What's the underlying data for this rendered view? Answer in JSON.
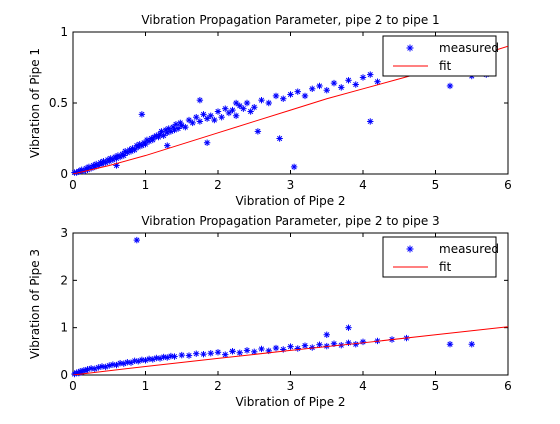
{
  "charts": [
    {
      "type": "scatter",
      "title": "Vibration Propagation Parameter, pipe 2 to pipe 1",
      "xlabel": "Vibration of Pipe 2",
      "ylabel": "Vibration of Pipe 1",
      "xlim": [
        0,
        6
      ],
      "ylim": [
        0,
        1
      ],
      "xticks": [
        "0",
        "1",
        "2",
        "3",
        "4",
        "5",
        "6"
      ],
      "yticks": [
        "0",
        "0.5",
        "1"
      ],
      "grid": false,
      "legend_position": "top-right",
      "series": [
        {
          "name": "measured",
          "marker": "asterisk",
          "color": "#0000ff",
          "x": [
            0.02,
            0.05,
            0.08,
            0.1,
            0.12,
            0.15,
            0.18,
            0.2,
            0.22,
            0.25,
            0.28,
            0.3,
            0.32,
            0.35,
            0.38,
            0.4,
            0.42,
            0.45,
            0.48,
            0.5,
            0.52,
            0.55,
            0.58,
            0.6,
            0.62,
            0.65,
            0.68,
            0.7,
            0.72,
            0.75,
            0.78,
            0.8,
            0.82,
            0.85,
            0.88,
            0.9,
            0.92,
            0.95,
            0.98,
            1.0,
            1.02,
            1.05,
            1.08,
            1.1,
            1.12,
            1.15,
            1.18,
            1.2,
            1.22,
            1.25,
            1.28,
            1.3,
            1.32,
            1.35,
            1.38,
            1.4,
            1.42,
            1.45,
            1.48,
            1.5,
            1.55,
            1.6,
            1.65,
            1.7,
            1.75,
            1.8,
            1.85,
            1.9,
            1.95,
            2.0,
            2.05,
            2.1,
            2.15,
            2.2,
            2.25,
            2.3,
            2.35,
            2.4,
            2.45,
            2.5,
            2.6,
            2.7,
            2.8,
            2.9,
            3.0,
            3.1,
            3.2,
            3.3,
            3.4,
            3.5,
            3.6,
            3.7,
            3.8,
            3.9,
            4.0,
            4.1,
            4.2,
            4.4,
            4.6,
            4.8,
            5.0,
            5.2,
            5.5,
            5.7,
            0.95,
            1.75,
            2.25,
            2.85,
            3.05,
            1.3,
            4.1,
            0.6,
            1.85,
            2.55
          ],
          "y": [
            0.01,
            0.01,
            0.02,
            0.02,
            0.03,
            0.02,
            0.04,
            0.03,
            0.05,
            0.04,
            0.06,
            0.05,
            0.07,
            0.06,
            0.08,
            0.07,
            0.09,
            0.08,
            0.1,
            0.09,
            0.11,
            0.1,
            0.12,
            0.11,
            0.13,
            0.12,
            0.14,
            0.13,
            0.16,
            0.15,
            0.17,
            0.16,
            0.18,
            0.17,
            0.2,
            0.19,
            0.21,
            0.2,
            0.22,
            0.21,
            0.24,
            0.23,
            0.25,
            0.24,
            0.26,
            0.27,
            0.26,
            0.28,
            0.3,
            0.27,
            0.31,
            0.29,
            0.32,
            0.3,
            0.33,
            0.31,
            0.35,
            0.32,
            0.36,
            0.34,
            0.33,
            0.38,
            0.36,
            0.4,
            0.37,
            0.42,
            0.39,
            0.41,
            0.38,
            0.44,
            0.4,
            0.46,
            0.43,
            0.45,
            0.41,
            0.48,
            0.46,
            0.5,
            0.44,
            0.47,
            0.52,
            0.5,
            0.55,
            0.53,
            0.56,
            0.58,
            0.55,
            0.6,
            0.62,
            0.59,
            0.64,
            0.61,
            0.66,
            0.63,
            0.68,
            0.7,
            0.65,
            0.72,
            0.74,
            0.71,
            0.76,
            0.62,
            0.69,
            0.7,
            0.42,
            0.52,
            0.5,
            0.25,
            0.05,
            0.2,
            0.37,
            0.06,
            0.22,
            0.3
          ]
        },
        {
          "name": "fit",
          "marker": "line",
          "color": "#ff0000",
          "x": [
            0,
            0.5,
            1,
            1.5,
            2,
            2.5,
            3,
            3.5,
            4,
            4.5,
            5,
            5.5,
            6
          ],
          "y": [
            0,
            0.06,
            0.13,
            0.21,
            0.29,
            0.37,
            0.45,
            0.53,
            0.6,
            0.67,
            0.74,
            0.82,
            0.9
          ]
        }
      ]
    },
    {
      "type": "scatter",
      "title": "Vibration Propagation Parameter, pipe 2 to pipe 3",
      "xlabel": "Vibration of Pipe 2",
      "ylabel": "Vibration of Pipe 3",
      "xlim": [
        0,
        6
      ],
      "ylim": [
        0,
        3
      ],
      "xticks": [
        "0",
        "1",
        "2",
        "3",
        "4",
        "5",
        "6"
      ],
      "yticks": [
        "0",
        "1",
        "2",
        "3"
      ],
      "grid": false,
      "legend_position": "top-right",
      "series": [
        {
          "name": "measured",
          "marker": "asterisk",
          "color": "#0000ff",
          "x": [
            0.02,
            0.05,
            0.08,
            0.1,
            0.12,
            0.15,
            0.18,
            0.2,
            0.25,
            0.3,
            0.35,
            0.4,
            0.45,
            0.5,
            0.55,
            0.6,
            0.65,
            0.7,
            0.75,
            0.8,
            0.85,
            0.9,
            0.95,
            1.0,
            1.05,
            1.1,
            1.15,
            1.2,
            1.25,
            1.3,
            1.35,
            1.4,
            1.5,
            1.6,
            1.7,
            1.8,
            1.9,
            2.0,
            2.1,
            2.2,
            2.3,
            2.4,
            2.5,
            2.6,
            2.7,
            2.8,
            2.9,
            3.0,
            3.1,
            3.2,
            3.3,
            3.4,
            3.5,
            3.6,
            3.7,
            3.8,
            3.9,
            4.0,
            4.2,
            4.4,
            4.6,
            5.2,
            5.5,
            0.88,
            3.8,
            3.5,
            2.2
          ],
          "y": [
            0.02,
            0.05,
            0.04,
            0.08,
            0.06,
            0.1,
            0.09,
            0.12,
            0.14,
            0.13,
            0.16,
            0.18,
            0.17,
            0.2,
            0.22,
            0.21,
            0.25,
            0.24,
            0.27,
            0.26,
            0.3,
            0.29,
            0.32,
            0.31,
            0.34,
            0.33,
            0.36,
            0.35,
            0.38,
            0.37,
            0.4,
            0.39,
            0.42,
            0.41,
            0.45,
            0.44,
            0.46,
            0.48,
            0.43,
            0.5,
            0.47,
            0.52,
            0.49,
            0.55,
            0.51,
            0.57,
            0.54,
            0.6,
            0.56,
            0.62,
            0.58,
            0.64,
            0.61,
            0.66,
            0.63,
            0.68,
            0.65,
            0.7,
            0.72,
            0.75,
            0.78,
            0.65,
            0.65,
            2.85,
            1.0,
            0.85,
            0.5
          ]
        },
        {
          "name": "fit",
          "marker": "line",
          "color": "#ff0000",
          "x": [
            0,
            1,
            2,
            3,
            4,
            5,
            6
          ],
          "y": [
            0,
            0.18,
            0.35,
            0.52,
            0.68,
            0.85,
            1.02
          ]
        }
      ]
    }
  ]
}
